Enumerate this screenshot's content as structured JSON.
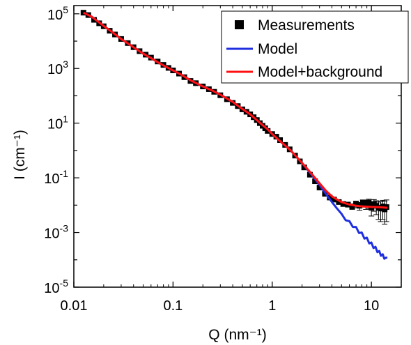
{
  "chart_data": {
    "type": "scatter",
    "title": "",
    "xlabel": "Q (nm⁻¹)",
    "ylabel": "I (cm⁻¹)",
    "xscale": "log",
    "yscale": "log",
    "xlim": [
      0.01,
      20
    ],
    "ylim": [
      1e-05,
      200000
    ],
    "x_tick_labels": [
      "0.01",
      "0.1",
      "1",
      "10"
    ],
    "y_tick_labels": [
      "10-5",
      "10-3",
      "10-1",
      "101",
      "103",
      "105"
    ],
    "legend_position": "top-right",
    "colors": {
      "measurements": "#000000",
      "model": "#1f2fe0",
      "model_background": "#ff1010"
    },
    "series": [
      {
        "name": "Measurements",
        "marker": "square",
        "x": [
          0.0125,
          0.014,
          0.016,
          0.018,
          0.02,
          0.023,
          0.026,
          0.03,
          0.035,
          0.04,
          0.046,
          0.053,
          0.06,
          0.07,
          0.08,
          0.09,
          0.1,
          0.115,
          0.13,
          0.15,
          0.17,
          0.2,
          0.23,
          0.26,
          0.3,
          0.35,
          0.4,
          0.45,
          0.5,
          0.55,
          0.6,
          0.65,
          0.7,
          0.75,
          0.8,
          0.85,
          0.9,
          1.0,
          1.1,
          1.2,
          1.35,
          1.5,
          1.7,
          1.9,
          2.1,
          2.4,
          2.7,
          3.0,
          3.4,
          3.8,
          4.2,
          4.7,
          5.2,
          5.8,
          6.4,
          7.0,
          7.6,
          8.2,
          8.8,
          9.4,
          10.0,
          10.6,
          11.2,
          11.8,
          12.4,
          13.0,
          13.6,
          14.2
        ],
        "y": [
          110000,
          90000,
          60000,
          45000,
          35000,
          24000,
          17500,
          12000,
          8500,
          6000,
          4300,
          3200,
          2500,
          1800,
          1350,
          1050,
          850,
          650,
          480,
          350,
          290,
          220,
          175,
          140,
          105,
          75,
          55,
          42,
          32,
          26,
          21,
          16.5,
          13,
          10,
          8,
          6.5,
          5.2,
          4,
          3.2,
          2.4,
          1.6,
          1.1,
          0.65,
          0.4,
          0.24,
          0.13,
          0.075,
          0.044,
          0.026,
          0.019,
          0.016,
          0.013,
          0.011,
          0.0105,
          0.009,
          0.011,
          0.0095,
          0.0125,
          0.011,
          0.0125,
          0.008,
          0.011,
          0.0095,
          0.008,
          0.0075,
          0.009,
          0.007,
          0.0085
        ],
        "error_upper": [
          0,
          0,
          0,
          0,
          0,
          0,
          0,
          0,
          0,
          0,
          0,
          0,
          0,
          0,
          0,
          0,
          0,
          0,
          0,
          0,
          0,
          0,
          0,
          0,
          0,
          0,
          0,
          0,
          0,
          0,
          0,
          0,
          0,
          0,
          0,
          0,
          0,
          0,
          0,
          0,
          0,
          0,
          0,
          0,
          0,
          0,
          0,
          0,
          0,
          0,
          0,
          0,
          0,
          0.002,
          0.002,
          0.003,
          0.003,
          0.003,
          0.004,
          0.004,
          0.004,
          0.005,
          0.005,
          0.005,
          0.006,
          0.006,
          0.007,
          0.007
        ],
        "error_lower": [
          0,
          0,
          0,
          0,
          0,
          0,
          0,
          0,
          0,
          0,
          0,
          0,
          0,
          0,
          0,
          0,
          0,
          0,
          0,
          0,
          0,
          0,
          0,
          0,
          0,
          0,
          0,
          0,
          0,
          0,
          0,
          0,
          0,
          0,
          0,
          0,
          0,
          0,
          0,
          0,
          0,
          0,
          0,
          0,
          0,
          0,
          0,
          0,
          0,
          0,
          0,
          0,
          0,
          0.002,
          0.002,
          0.003,
          0.003,
          0.004,
          0.004,
          0.005,
          0.004,
          0.005,
          0.005,
          0.005,
          0.005,
          0.006,
          0.005,
          0.006
        ]
      },
      {
        "name": "Model",
        "line": true,
        "x": [
          0.0125,
          0.015,
          0.02,
          0.025,
          0.03,
          0.04,
          0.05,
          0.06,
          0.07,
          0.08,
          0.1,
          0.12,
          0.15,
          0.2,
          0.25,
          0.3,
          0.4,
          0.5,
          0.6,
          0.7,
          0.8,
          0.9,
          1.0,
          1.2,
          1.5,
          2.0,
          2.5,
          3.0,
          3.5,
          4.0,
          4.5,
          5.0,
          5.5,
          6.0,
          6.5,
          7.0,
          7.5,
          8.0,
          8.5,
          9.0,
          9.5,
          10.0,
          10.5,
          11.0,
          11.5,
          12.0,
          12.5,
          13.0,
          13.5,
          14.0,
          14.5
        ],
        "y": [
          110000,
          80000,
          36000,
          20000,
          12000,
          6000,
          3500,
          2400,
          1700,
          1300,
          850,
          600,
          370,
          220,
          155,
          110,
          60,
          33,
          21,
          13,
          8.5,
          6,
          4,
          2.2,
          1.1,
          0.35,
          0.13,
          0.055,
          0.025,
          0.013,
          0.0075,
          0.0048,
          0.0028,
          0.0026,
          0.0016,
          0.0016,
          0.00095,
          0.001,
          0.0006,
          0.00065,
          0.0004,
          0.00043,
          0.00027,
          0.0003,
          0.00019,
          0.00021,
          0.00014,
          0.00016,
          0.00011,
          0.00012,
          0.00012
        ]
      },
      {
        "name": "Model+background",
        "line": true,
        "x": [
          0.0125,
          0.015,
          0.02,
          0.025,
          0.03,
          0.04,
          0.05,
          0.06,
          0.07,
          0.08,
          0.1,
          0.12,
          0.15,
          0.2,
          0.25,
          0.3,
          0.4,
          0.5,
          0.6,
          0.7,
          0.8,
          0.9,
          1.0,
          1.2,
          1.5,
          2.0,
          2.5,
          3.0,
          3.5,
          4.0,
          4.5,
          5.0,
          6.0,
          7.0,
          8.0,
          9.0,
          10.0,
          12.0,
          14.5
        ],
        "y": [
          110000,
          80000,
          36000,
          20000,
          12000,
          6000,
          3500,
          2400,
          1700,
          1300,
          850,
          600,
          370,
          220,
          155,
          110,
          60,
          33,
          21,
          13,
          8.5,
          6,
          4,
          2.2,
          1.1,
          0.35,
          0.14,
          0.063,
          0.033,
          0.021,
          0.016,
          0.013,
          0.0105,
          0.0095,
          0.009,
          0.0088,
          0.0086,
          0.0084,
          0.008
        ]
      }
    ]
  }
}
